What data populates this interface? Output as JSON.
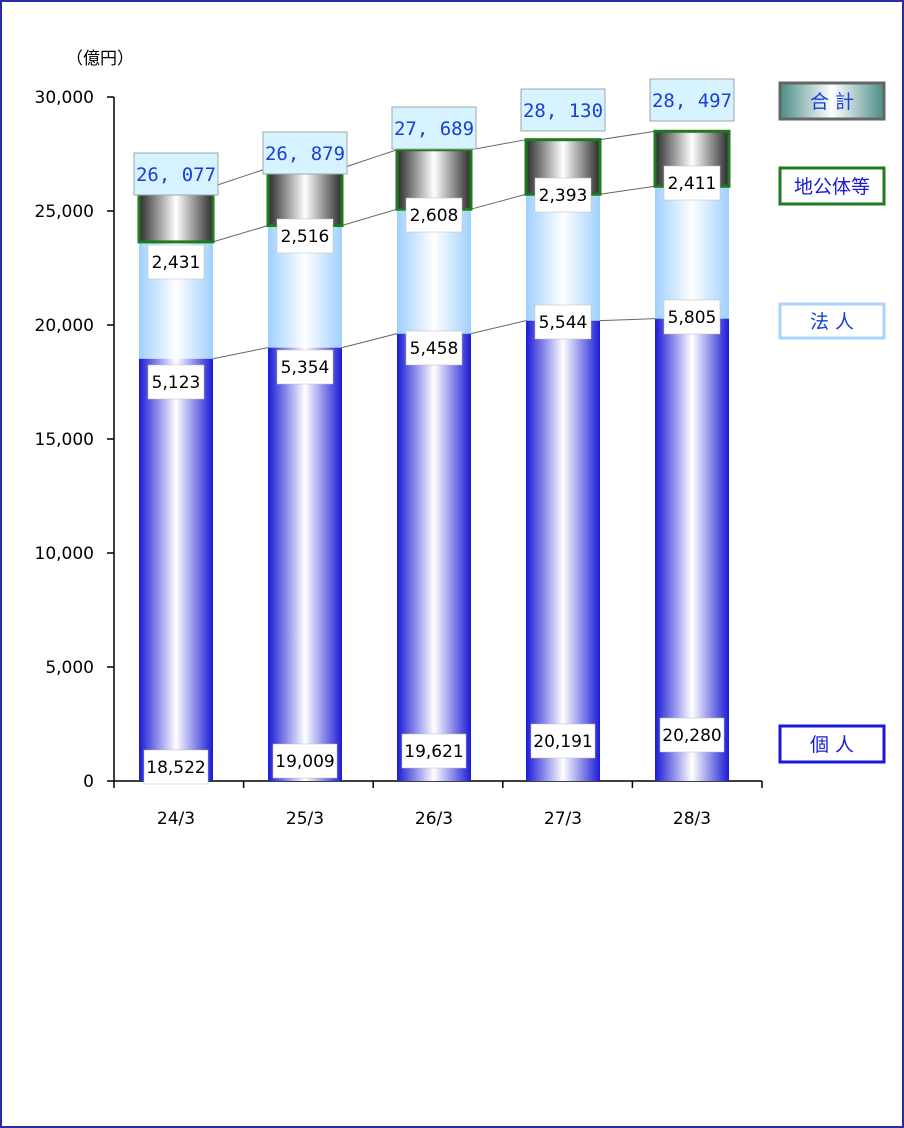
{
  "chart_data": {
    "type": "bar",
    "stacked": true,
    "unit_label": "（億円）",
    "categories": [
      "24/3",
      "25/3",
      "26/3",
      "27/3",
      "28/3"
    ],
    "y_ticks": [
      "0",
      "5,000",
      "10,000",
      "15,000",
      "20,000",
      "25,000",
      "30,000"
    ],
    "ylim": [
      0,
      30000
    ],
    "series": [
      {
        "name": "個 人",
        "values": [
          18522,
          19009,
          19621,
          20191,
          20280
        ],
        "labels": [
          "18,522",
          "19,009",
          "19,621",
          "20,191",
          "20,280"
        ],
        "color": "#1a1ad6"
      },
      {
        "name": "法 人",
        "values": [
          5123,
          5354,
          5458,
          5544,
          5805
        ],
        "labels": [
          "5,123",
          "5,354",
          "5,458",
          "5,544",
          "5,805"
        ],
        "color": "#a8d4ff"
      },
      {
        "name": "地公体等",
        "values": [
          2431,
          2516,
          2608,
          2393,
          2411
        ],
        "labels": [
          "2,431",
          "2,516",
          "2,608",
          "2,393",
          "2,411"
        ],
        "color": "#1e7a1e"
      }
    ],
    "totals": {
      "name": "合 計",
      "values": [
        26077,
        26879,
        27689,
        28130,
        28497
      ],
      "labels": [
        "26, 077",
        "26, 879",
        "27, 689",
        "28, 130",
        "28, 497"
      ],
      "color": "#1a3fd6"
    },
    "legend_placement": "right",
    "grid": false
  }
}
